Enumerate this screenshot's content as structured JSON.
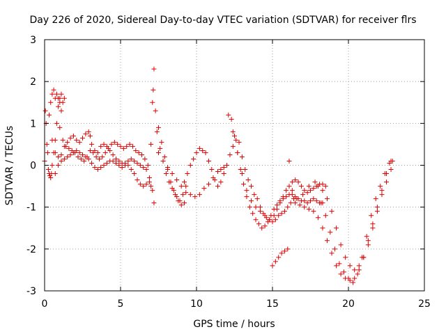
{
  "chart_data": {
    "type": "scatter",
    "title": "Day 226 of 2020, Sidereal Day-to-day VTEC variation (SDTVAR) for receiver flrs",
    "xlabel": "GPS time / hours",
    "ylabel": "SDTVAR / TECUs",
    "xlim": [
      0,
      25
    ],
    "ylim": [
      -3,
      3
    ],
    "xticks": [
      "0",
      "5",
      "10",
      "15",
      "20",
      "25"
    ],
    "yticks": [
      "3",
      "2",
      "1",
      "0",
      "-1",
      "-2",
      "-3"
    ],
    "grid": true,
    "marker": "plus",
    "color": "#e00000",
    "series": [
      {
        "name": "flrs",
        "x": [
          0.0,
          0.05,
          0.1,
          0.15,
          0.2,
          0.25,
          0.3,
          0.35,
          0.4,
          0.45,
          0.5,
          0.6,
          0.7,
          0.8,
          0.9,
          1.0,
          1.1,
          1.2,
          1.3,
          0.3,
          0.4,
          0.5,
          0.6,
          0.7,
          0.8,
          0.9,
          1.0,
          1.1,
          0.5,
          0.7,
          0.9,
          1.1,
          1.3,
          1.5,
          1.7,
          1.9,
          2.1,
          2.3,
          2.5,
          2.7,
          2.9,
          3.0,
          3.1,
          3.3,
          3.5,
          3.7,
          3.9,
          4.1,
          4.3,
          4.5,
          4.7,
          4.9,
          5.1,
          5.3,
          5.5,
          5.7,
          5.9,
          6.1,
          6.3,
          6.5,
          6.7,
          6.9,
          7.0,
          0.7,
          0.9,
          1.1,
          1.3,
          1.5,
          1.7,
          1.9,
          2.1,
          2.3,
          2.5,
          2.7,
          2.9,
          3.1,
          3.3,
          3.5,
          3.7,
          3.9,
          4.1,
          4.3,
          4.5,
          4.7,
          4.9,
          5.1,
          5.3,
          5.5,
          5.7,
          5.9,
          6.1,
          6.3,
          6.5,
          6.7,
          6.9,
          7.1,
          7.2,
          1.0,
          1.2,
          1.4,
          1.6,
          1.8,
          2.0,
          2.2,
          2.4,
          2.6,
          2.8,
          3.0,
          3.2,
          3.4,
          3.6,
          3.8,
          4.0,
          4.2,
          4.4,
          4.6,
          4.8,
          5.0,
          5.2,
          5.4,
          5.6,
          5.8,
          6.0,
          6.2,
          6.4,
          6.6,
          6.8,
          7.0,
          7.1,
          7.2,
          7.15,
          7.3,
          7.5,
          7.7,
          7.9,
          8.1,
          8.3,
          8.5,
          8.7,
          8.9,
          9.1,
          9.3,
          7.4,
          7.6,
          7.8,
          8.0,
          8.2,
          8.4,
          8.6,
          8.8,
          9.0,
          9.2,
          7.5,
          7.8,
          8.1,
          8.4,
          8.7,
          9.0,
          9.3,
          9.6,
          9.9,
          10.2,
          10.5,
          10.8,
          11.1,
          11.4,
          11.6,
          11.8,
          9.2,
          9.4,
          9.6,
          9.8,
          10.0,
          10.2,
          10.4,
          10.6,
          10.8,
          11.0,
          11.2,
          11.4,
          11.6,
          11.8,
          12.0,
          12.2,
          12.4,
          12.6,
          12.8,
          13.0,
          13.2,
          13.4,
          13.6,
          13.8,
          14.0,
          14.2,
          14.4,
          14.6,
          14.8,
          15.0,
          15.2,
          15.4,
          15.6,
          15.8,
          16.0,
          16.2,
          16.4,
          12.3,
          12.5,
          12.7,
          12.9,
          13.1,
          13.3,
          13.5,
          13.7,
          13.9,
          14.1,
          14.3,
          14.5,
          14.7,
          14.9,
          15.1,
          15.3,
          15.5,
          15.7,
          15.9,
          16.1,
          16.3,
          16.5,
          16.7,
          16.9,
          17.1,
          17.3,
          17.5,
          17.7,
          17.9,
          18.1,
          18.3,
          12.1,
          12.4,
          12.7,
          13.0,
          13.3,
          13.6,
          13.9,
          14.2,
          14.5,
          14.8,
          15.1,
          15.3,
          15.5,
          15.7,
          15.9,
          16.1,
          16.3,
          16.5,
          16.7,
          16.9,
          17.1,
          17.3,
          17.5,
          17.7,
          17.9,
          18.1,
          18.3,
          18.5,
          15.0,
          15.2,
          15.4,
          15.6,
          15.8,
          16.0,
          16.1,
          16.3,
          16.6,
          17.0,
          17.4,
          17.8,
          18.0,
          18.3,
          18.6,
          18.9,
          19.2,
          19.5,
          19.8,
          20.1,
          20.4,
          20.7,
          21.0,
          21.3,
          21.6,
          21.9,
          22.2,
          22.5,
          22.8,
          16.5,
          16.8,
          17.1,
          17.4,
          17.7,
          18.0,
          18.3,
          18.6,
          18.9,
          19.2,
          19.5,
          19.8,
          20.1,
          20.4,
          20.7,
          21.0,
          21.3,
          21.6,
          21.9,
          22.2,
          22.5,
          22.8,
          18.2,
          18.5,
          18.8,
          19.1,
          19.4,
          19.7,
          20.0,
          20.3,
          20.6,
          20.9,
          21.2,
          21.5,
          21.8,
          22.1,
          22.4,
          22.7,
          22.9
        ],
        "y": [
          0.1,
          1.3,
          1.0,
          0.5,
          0.3,
          -0.1,
          -0.2,
          -0.25,
          -0.3,
          -0.2,
          0.0,
          0.3,
          0.6,
          1.0,
          1.4,
          1.6,
          1.7,
          1.5,
          1.6,
          1.2,
          1.5,
          1.7,
          1.8,
          1.6,
          1.7,
          1.6,
          1.5,
          1.3,
          0.6,
          0.3,
          0.2,
          0.25,
          0.45,
          0.55,
          0.65,
          0.7,
          0.6,
          0.55,
          0.65,
          0.75,
          0.8,
          0.7,
          0.5,
          0.35,
          0.3,
          0.45,
          0.5,
          0.45,
          0.35,
          0.25,
          0.15,
          0.1,
          0.05,
          0.0,
          0.0,
          -0.1,
          -0.2,
          -0.35,
          -0.45,
          -0.5,
          -0.45,
          -0.4,
          -0.5,
          -0.2,
          0.0,
          0.1,
          0.15,
          0.2,
          0.25,
          0.3,
          0.35,
          0.3,
          0.25,
          0.2,
          0.15,
          0.05,
          -0.05,
          -0.1,
          -0.05,
          0.0,
          0.05,
          0.1,
          0.1,
          0.05,
          0.0,
          -0.05,
          0.05,
          0.1,
          0.15,
          0.1,
          0.05,
          0.0,
          -0.05,
          -0.1,
          -0.3,
          -0.6,
          -0.9,
          0.9,
          0.6,
          0.45,
          0.4,
          0.35,
          0.3,
          0.2,
          0.15,
          0.1,
          0.2,
          0.35,
          0.3,
          0.2,
          0.15,
          0.2,
          0.3,
          0.4,
          0.5,
          0.55,
          0.5,
          0.45,
          0.4,
          0.45,
          0.5,
          0.45,
          0.35,
          0.3,
          0.25,
          0.15,
          0.0,
          0.5,
          1.5,
          2.3,
          1.8,
          1.3,
          0.9,
          0.55,
          0.2,
          -0.1,
          -0.4,
          -0.6,
          -0.75,
          -0.85,
          -0.7,
          -0.5,
          0.8,
          0.4,
          0.1,
          -0.2,
          -0.4,
          -0.55,
          -0.7,
          -0.85,
          -0.95,
          -0.9,
          0.3,
          0.1,
          -0.05,
          -0.2,
          -0.35,
          -0.5,
          -0.65,
          -0.7,
          -0.75,
          -0.7,
          -0.55,
          -0.45,
          -0.3,
          -0.15,
          -0.1,
          -0.05,
          -0.4,
          -0.2,
          0.0,
          0.15,
          0.3,
          0.4,
          0.35,
          0.3,
          0.1,
          -0.1,
          -0.35,
          -0.5,
          -0.4,
          -0.2,
          0.0,
          0.25,
          0.45,
          0.6,
          0.55,
          0.2,
          -0.1,
          -0.35,
          -0.5,
          -0.7,
          -0.8,
          -1.0,
          -1.15,
          -1.25,
          -1.3,
          -1.35,
          -1.3,
          -1.2,
          -1.15,
          -1.1,
          -1.0,
          -0.9,
          -0.8,
          1.1,
          0.7,
          0.3,
          -0.1,
          -0.45,
          -0.75,
          -1.0,
          -1.15,
          -1.3,
          -1.4,
          -1.5,
          -1.45,
          -1.35,
          -1.2,
          -1.05,
          -0.95,
          -0.85,
          -0.8,
          -0.75,
          -0.7,
          -0.7,
          -0.75,
          -0.8,
          -0.85,
          -0.85,
          -0.9,
          -0.85,
          -0.8,
          -0.85,
          -0.9,
          -0.9,
          1.2,
          0.8,
          0.3,
          -0.2,
          -0.6,
          -0.85,
          -1.0,
          -1.1,
          -1.2,
          -1.3,
          -1.2,
          -1.05,
          -0.9,
          -0.75,
          -0.6,
          -0.5,
          -0.4,
          -0.35,
          -0.4,
          -0.5,
          -0.6,
          -0.65,
          -0.6,
          -0.55,
          -0.5,
          -0.45,
          -0.45,
          -0.5,
          -2.4,
          -2.3,
          -2.2,
          -2.1,
          -2.05,
          -2.0,
          0.1,
          -0.6,
          -0.8,
          -0.7,
          -0.5,
          -0.4,
          -0.5,
          -0.6,
          -0.8,
          -1.1,
          -1.5,
          -1.9,
          -2.2,
          -2.4,
          -2.5,
          -2.4,
          -2.2,
          -1.9,
          -1.5,
          -1.1,
          -0.6,
          -0.2,
          0.1,
          -0.9,
          -0.95,
          -1.0,
          -1.05,
          -1.1,
          -1.25,
          -1.5,
          -1.8,
          -2.1,
          -2.4,
          -2.6,
          -2.7,
          -2.75,
          -2.7,
          -2.5,
          -2.2,
          -1.8,
          -1.4,
          -1.0,
          -0.7,
          -0.4,
          -0.1,
          -0.9,
          -1.2,
          -1.6,
          -2.0,
          -2.35,
          -2.55,
          -2.7,
          -2.8,
          -2.6,
          -2.2,
          -1.7,
          -1.2,
          -0.8,
          -0.5,
          -0.2,
          0.05,
          0.1
        ]
      }
    ]
  }
}
